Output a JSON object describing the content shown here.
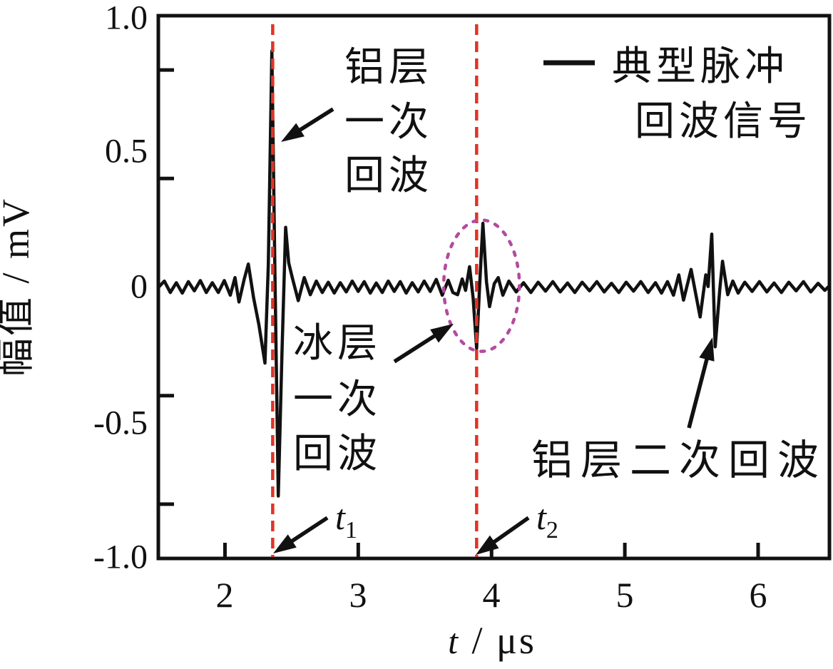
{
  "figure": {
    "colors": {
      "signal": "#111111",
      "marker_line": "#e03426",
      "ellipse": "#b44a9e",
      "frame": "#111111",
      "background": "#ffffff",
      "text": "#111111"
    },
    "y_axis": {
      "title": "幅值 / mV",
      "tick_labels": [
        "1.0",
        "0.5",
        "0",
        "-0.5",
        "-1.0"
      ]
    },
    "x_axis": {
      "title_var": "t",
      "title_unit": " / μs",
      "tick_labels": [
        "2",
        "3",
        "4",
        "5",
        "6"
      ]
    },
    "legend": {
      "line1": "典型脉冲",
      "line2": "回波信号"
    },
    "markers": {
      "t1": {
        "main": "t",
        "sub": "1"
      },
      "t2": {
        "main": "t",
        "sub": "2"
      }
    },
    "annotations": {
      "al_first": {
        "lines": [
          "铝层",
          "一次",
          "回波"
        ]
      },
      "ice_first": {
        "lines": [
          "冰层",
          "一次",
          "回波"
        ]
      },
      "al_second": {
        "text": "铝层二次回波"
      }
    },
    "arrows": [
      {
        "name": "al-first-echo-arrow",
        "from": [
          467,
          153
        ],
        "to": [
          394,
          199
        ]
      },
      {
        "name": "ice-first-echo-arrow",
        "from": [
          553,
          507
        ],
        "to": [
          636,
          454
        ]
      },
      {
        "name": "al-second-echo-arrow",
        "from": [
          966,
          600
        ],
        "to": [
          999,
          473
        ]
      },
      {
        "name": "t1-arrow",
        "from": [
          459,
          726
        ],
        "to": [
          383,
          776
        ]
      },
      {
        "name": "t2-arrow",
        "from": [
          741,
          726
        ],
        "to": [
          667,
          778
        ]
      }
    ]
  },
  "chart_data": {
    "type": "line",
    "title": "",
    "xlabel": "t / μs",
    "ylabel": "幅值 / mV",
    "xlim": [
      1.5,
      6.535
    ],
    "ylim": [
      -1.0,
      1.0
    ],
    "grid": false,
    "legend_position": "top-right",
    "legend_entries": [
      "典型脉冲回波信号"
    ],
    "x_ticks": [
      2,
      3,
      4,
      5,
      6
    ],
    "y_labeled_values": [
      1.0,
      0.5,
      0,
      -0.5,
      -1.0
    ],
    "y_minor_tick_values": [
      0.8,
      0.4,
      -0.4,
      -0.8
    ],
    "markers": [
      {
        "name": "t1",
        "t": 2.358
      },
      {
        "name": "t2",
        "t": 3.888
      }
    ],
    "highlight_ellipse": {
      "t": 3.925,
      "mv": 0.005,
      "r_t": 0.284,
      "r_mv": 0.242
    },
    "echo_events": [
      {
        "label": "铝层一次回波",
        "t_us": 2.36,
        "peak_mv": 0.87
      },
      {
        "label": "冰层一次回波",
        "t_us": 3.89,
        "peak_mv": 0.24
      },
      {
        "label": "铝层二次回波",
        "t_us": 5.66,
        "peak_mv": 0.2
      }
    ],
    "series": [
      {
        "name": "典型脉冲回波信号",
        "color": "#111111",
        "points": [
          [
            1.503,
            0.0
          ],
          [
            1.545,
            0.022
          ],
          [
            1.59,
            -0.02
          ],
          [
            1.635,
            0.016
          ],
          [
            1.68,
            -0.022
          ],
          [
            1.725,
            0.02
          ],
          [
            1.77,
            -0.014
          ],
          [
            1.815,
            0.024
          ],
          [
            1.86,
            -0.02
          ],
          [
            1.905,
            0.016
          ],
          [
            1.95,
            -0.02
          ],
          [
            1.995,
            0.024
          ],
          [
            2.04,
            -0.03
          ],
          [
            2.075,
            0.035
          ],
          [
            2.105,
            -0.055
          ],
          [
            2.145,
            0.03
          ],
          [
            2.175,
            0.085
          ],
          [
            2.215,
            -0.04
          ],
          [
            2.255,
            -0.14
          ],
          [
            2.3,
            -0.28
          ],
          [
            2.325,
            0.08
          ],
          [
            2.352,
            0.87
          ],
          [
            2.375,
            0.05
          ],
          [
            2.4,
            -0.77
          ],
          [
            2.428,
            -0.24
          ],
          [
            2.455,
            0.22
          ],
          [
            2.478,
            0.09
          ],
          [
            2.505,
            0.035
          ],
          [
            2.55,
            -0.05
          ],
          [
            2.595,
            0.035
          ],
          [
            2.64,
            -0.028
          ],
          [
            2.685,
            0.022
          ],
          [
            2.73,
            -0.02
          ],
          [
            2.775,
            0.018
          ],
          [
            2.82,
            -0.022
          ],
          [
            2.865,
            0.016
          ],
          [
            2.91,
            -0.018
          ],
          [
            2.955,
            0.022
          ],
          [
            3.0,
            -0.016
          ],
          [
            3.045,
            0.02
          ],
          [
            3.09,
            -0.022
          ],
          [
            3.135,
            0.015
          ],
          [
            3.18,
            -0.02
          ],
          [
            3.225,
            0.022
          ],
          [
            3.27,
            -0.016
          ],
          [
            3.315,
            0.02
          ],
          [
            3.36,
            -0.022
          ],
          [
            3.405,
            0.016
          ],
          [
            3.45,
            -0.018
          ],
          [
            3.495,
            0.022
          ],
          [
            3.54,
            -0.016
          ],
          [
            3.585,
            0.028
          ],
          [
            3.63,
            -0.03
          ],
          [
            3.675,
            0.025
          ],
          [
            3.71,
            -0.02
          ],
          [
            3.745,
            -0.028
          ],
          [
            3.78,
            0.03
          ],
          [
            3.805,
            -0.012
          ],
          [
            3.835,
            0.075
          ],
          [
            3.862,
            -0.04
          ],
          [
            3.888,
            -0.225
          ],
          [
            3.912,
            0.02
          ],
          [
            3.935,
            0.235
          ],
          [
            3.962,
            0.02
          ],
          [
            3.985,
            -0.072
          ],
          [
            4.02,
            0.012
          ],
          [
            4.05,
            0.035
          ],
          [
            4.085,
            -0.03
          ],
          [
            4.13,
            0.022
          ],
          [
            4.185,
            -0.018
          ],
          [
            4.24,
            0.016
          ],
          [
            4.295,
            -0.02
          ],
          [
            4.35,
            0.018
          ],
          [
            4.405,
            -0.015
          ],
          [
            4.46,
            0.02
          ],
          [
            4.515,
            -0.018
          ],
          [
            4.57,
            0.015
          ],
          [
            4.625,
            -0.02
          ],
          [
            4.68,
            0.018
          ],
          [
            4.735,
            -0.014
          ],
          [
            4.79,
            0.02
          ],
          [
            4.845,
            -0.018
          ],
          [
            4.9,
            0.014
          ],
          [
            4.955,
            -0.02
          ],
          [
            5.01,
            0.018
          ],
          [
            5.065,
            -0.015
          ],
          [
            5.12,
            0.02
          ],
          [
            5.175,
            -0.02
          ],
          [
            5.23,
            0.016
          ],
          [
            5.275,
            -0.022
          ],
          [
            5.32,
            0.02
          ],
          [
            5.365,
            -0.03
          ],
          [
            5.405,
            0.045
          ],
          [
            5.44,
            -0.048
          ],
          [
            5.497,
            0.065
          ],
          [
            5.565,
            -0.11
          ],
          [
            5.607,
            0.045
          ],
          [
            5.625,
            0.002
          ],
          [
            5.652,
            0.195
          ],
          [
            5.678,
            -0.22
          ],
          [
            5.712,
            -0.01
          ],
          [
            5.733,
            0.095
          ],
          [
            5.772,
            -0.028
          ],
          [
            5.81,
            0.022
          ],
          [
            5.85,
            -0.022
          ],
          [
            5.9,
            0.018
          ],
          [
            5.955,
            -0.016
          ],
          [
            6.01,
            0.02
          ],
          [
            6.065,
            -0.018
          ],
          [
            6.12,
            0.015
          ],
          [
            6.175,
            -0.02
          ],
          [
            6.23,
            0.018
          ],
          [
            6.285,
            -0.014
          ],
          [
            6.34,
            0.02
          ],
          [
            6.395,
            -0.018
          ],
          [
            6.45,
            0.014
          ],
          [
            6.5,
            -0.012
          ],
          [
            6.534,
            0.004
          ]
        ]
      }
    ]
  }
}
